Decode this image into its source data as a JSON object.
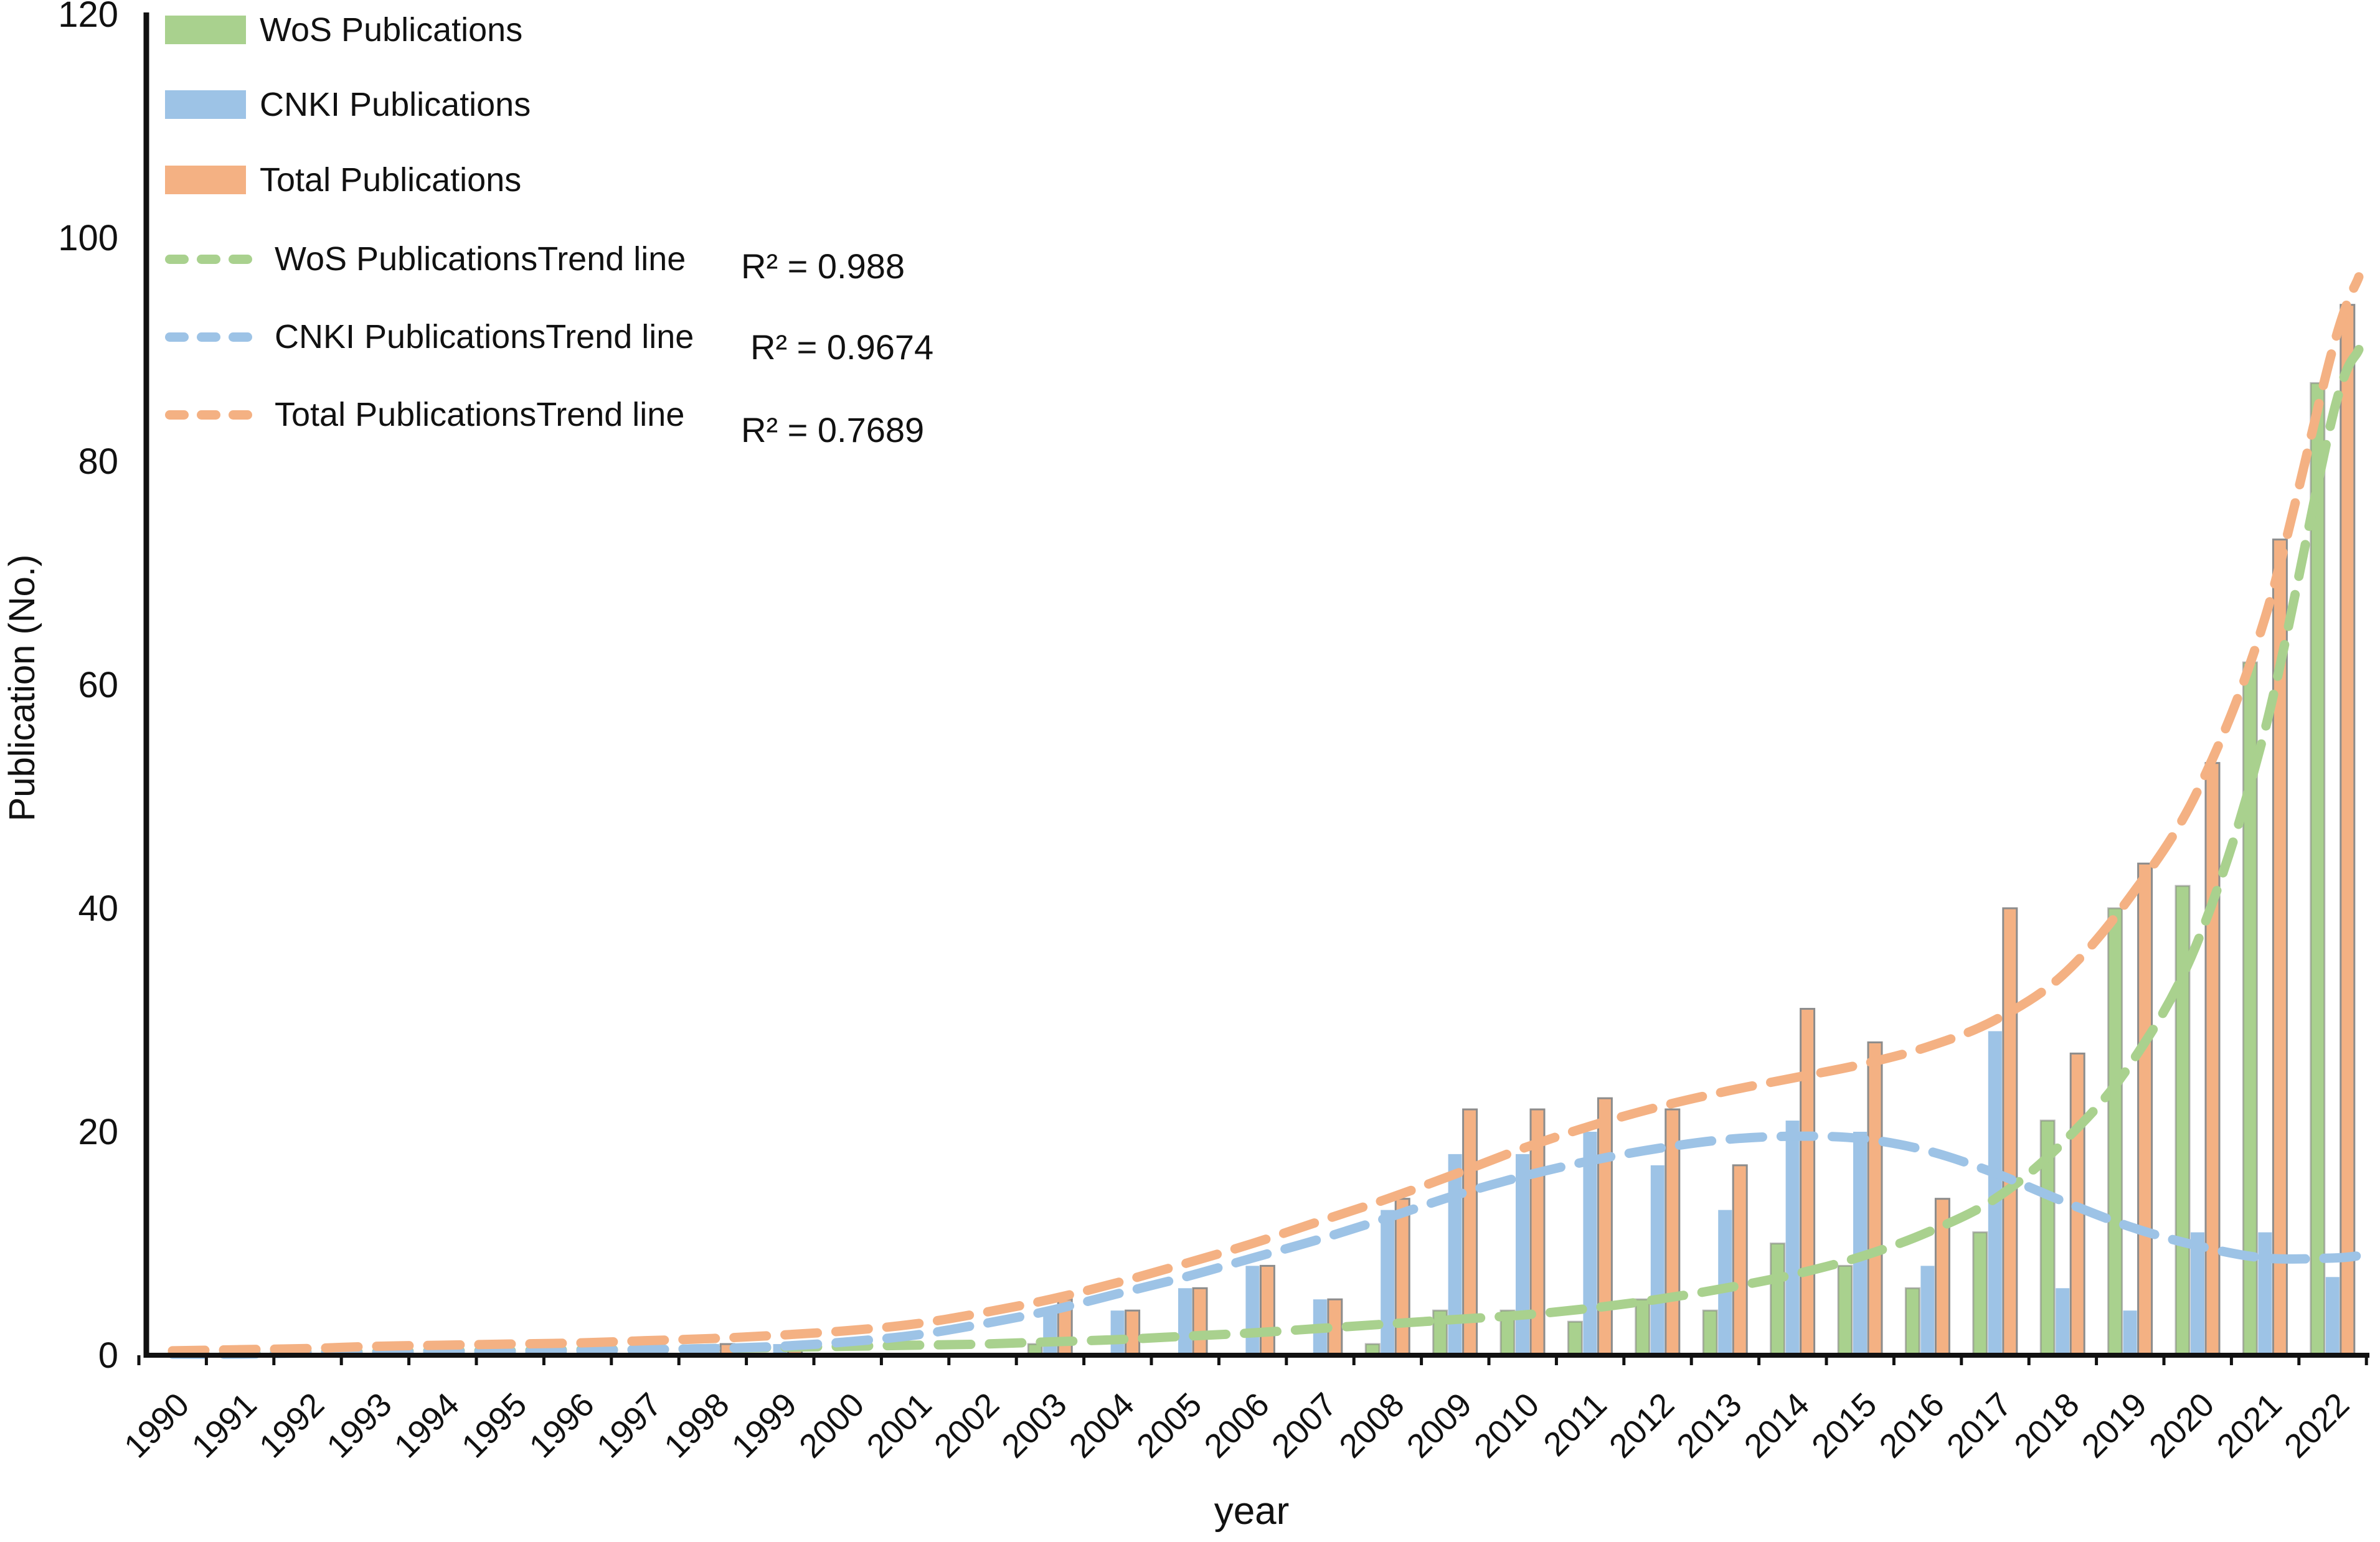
{
  "chart_data": {
    "type": "bar",
    "title": "",
    "xlabel": "year",
    "ylabel": "Publication (No.)",
    "ylim": [
      0,
      120
    ],
    "yticks": [
      0,
      20,
      40,
      60,
      80,
      100,
      120
    ],
    "grid": false,
    "legend_position": "top-left",
    "categories": [
      1990,
      1991,
      1992,
      1993,
      1994,
      1995,
      1996,
      1997,
      1998,
      1999,
      2000,
      2001,
      2002,
      2003,
      2004,
      2005,
      2006,
      2007,
      2008,
      2009,
      2010,
      2011,
      2012,
      2013,
      2014,
      2015,
      2016,
      2017,
      2018,
      2019,
      2020,
      2021,
      2022
    ],
    "series": [
      {
        "name": "WoS Publications",
        "color": "#a9d18e",
        "values": [
          0,
          0,
          0,
          0,
          0,
          0,
          0,
          0,
          0,
          0,
          0,
          0,
          0,
          1,
          0,
          0,
          0,
          0,
          1,
          4,
          4,
          3,
          5,
          4,
          10,
          8,
          6,
          11,
          21,
          40,
          42,
          62,
          87
        ]
      },
      {
        "name": "CNKI Publications",
        "color": "#9dc3e6",
        "values": [
          0,
          0,
          0,
          0,
          0,
          0,
          0,
          0,
          1,
          1,
          0,
          0,
          0,
          4,
          4,
          6,
          8,
          5,
          13,
          18,
          18,
          20,
          17,
          13,
          21,
          20,
          8,
          29,
          6,
          4,
          11,
          11,
          7
        ]
      },
      {
        "name": "Total Publications",
        "color": "#f4b183",
        "values": [
          0,
          0,
          0,
          0,
          0,
          0,
          0,
          0,
          1,
          1,
          0,
          0,
          0,
          5,
          4,
          6,
          8,
          5,
          14,
          22,
          22,
          23,
          22,
          17,
          31,
          28,
          14,
          40,
          27,
          44,
          53,
          73,
          94
        ]
      }
    ],
    "trend_lines": [
      {
        "name": "WoS PublicationsTrend line",
        "r2": "R² = 0.988",
        "color": "#a9d18e",
        "values": [
          0.2,
          0.2,
          0.3,
          0.3,
          0.4,
          0.4,
          0.5,
          0.5,
          0.6,
          0.7,
          0.8,
          0.9,
          1.0,
          1.2,
          1.4,
          1.7,
          2.0,
          2.4,
          2.8,
          3.2,
          3.6,
          4.2,
          5.0,
          6.0,
          7.2,
          8.8,
          11,
          14,
          19,
          26,
          37,
          56,
          84
        ],
        "tip_value": 90
      },
      {
        "name": "CNKI PublicationsTrend line",
        "r2": "R² = 0.9674",
        "color": "#9dc3e6",
        "values": [
          0.1,
          0.1,
          0.2,
          0.2,
          0.3,
          0.3,
          0.4,
          0.5,
          0.6,
          0.8,
          1.2,
          1.8,
          2.8,
          4.0,
          5.5,
          7.0,
          8.7,
          10.4,
          12.3,
          14.3,
          16.0,
          17.4,
          18.5,
          19.3,
          19.6,
          19.4,
          18.3,
          16.3,
          13.8,
          11.5,
          9.8,
          8.7,
          8.7
        ],
        "tip_value": 8.9
      },
      {
        "name": "Total PublicationsTrend line",
        "r2": "R² = 0.7689",
        "color": "#f4b183",
        "values": [
          0.4,
          0.5,
          0.6,
          0.8,
          0.9,
          1.0,
          1.1,
          1.3,
          1.5,
          1.8,
          2.2,
          2.8,
          3.8,
          5.0,
          6.5,
          8.2,
          10.0,
          12.0,
          14.0,
          16.2,
          18.5,
          20.5,
          22.2,
          23.6,
          24.8,
          26.0,
          27.6,
          30.0,
          34.0,
          41.0,
          50.5,
          66.0,
          90
        ],
        "tip_value": 96.5
      }
    ]
  },
  "legend": {
    "items": [
      {
        "label": "WoS Publications"
      },
      {
        "label": "CNKI Publications"
      },
      {
        "label": "Total Publications"
      },
      {
        "label": "WoS PublicationsTrend line",
        "r2": "R² = 0.988"
      },
      {
        "label": "CNKI PublicationsTrend line",
        "r2": "R² = 0.9674"
      },
      {
        "label": "Total PublicationsTrend line",
        "r2": "R² = 0.7689"
      }
    ]
  }
}
